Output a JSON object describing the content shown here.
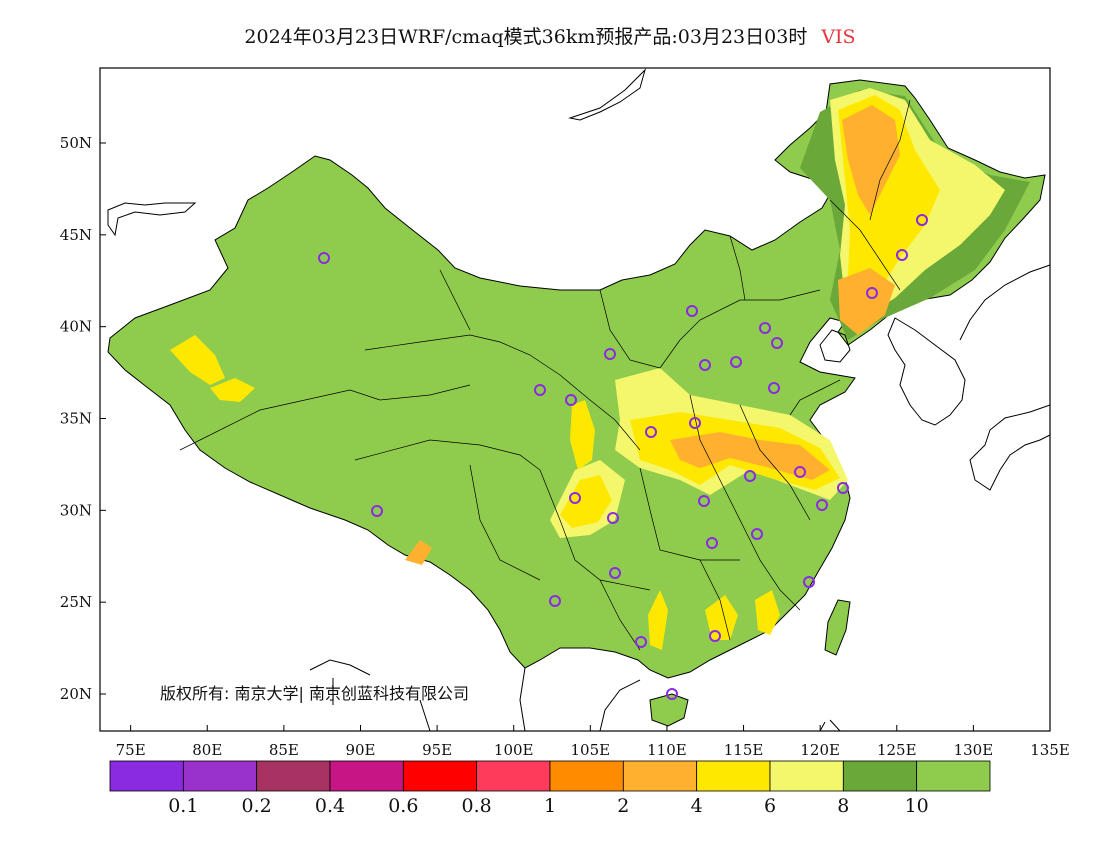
{
  "title": {
    "main": "2024年03月23日WRF/cmaq模式36km预报产品:03月23日03时",
    "variable": "VIS",
    "variable_color": "#e4363c"
  },
  "copyright": "版权所有: 南京大学| 南京创蓝科技有限公司",
  "axes": {
    "lon_ticks": [
      "75E",
      "80E",
      "85E",
      "90E",
      "95E",
      "100E",
      "105E",
      "110E",
      "115E",
      "120E",
      "125E",
      "130E",
      "135E"
    ],
    "lat_ticks": [
      "20N",
      "25N",
      "30N",
      "35N",
      "40N",
      "45N",
      "50N"
    ]
  },
  "colorbar": {
    "colors": [
      "#8a2be2",
      "#9932cc",
      "#a83262",
      "#c71585",
      "#ff0000",
      "#ff3b5c",
      "#ff8c00",
      "#ffb02e",
      "#ffe800",
      "#f4f76c",
      "#6aa83a",
      "#8fcc4e"
    ],
    "labels": [
      "0.1",
      "0.2",
      "0.4",
      "0.6",
      "0.8",
      "1",
      "2",
      "4",
      "6",
      "8",
      "10"
    ]
  },
  "map_colors": {
    "background_field": "#8fcc4e",
    "dark_green": "#6aa83a",
    "yellow": "#ffe800",
    "light_yellow": "#f4f76c",
    "orange": "#ffb02e",
    "station_ring": "#8a2be2"
  }
}
